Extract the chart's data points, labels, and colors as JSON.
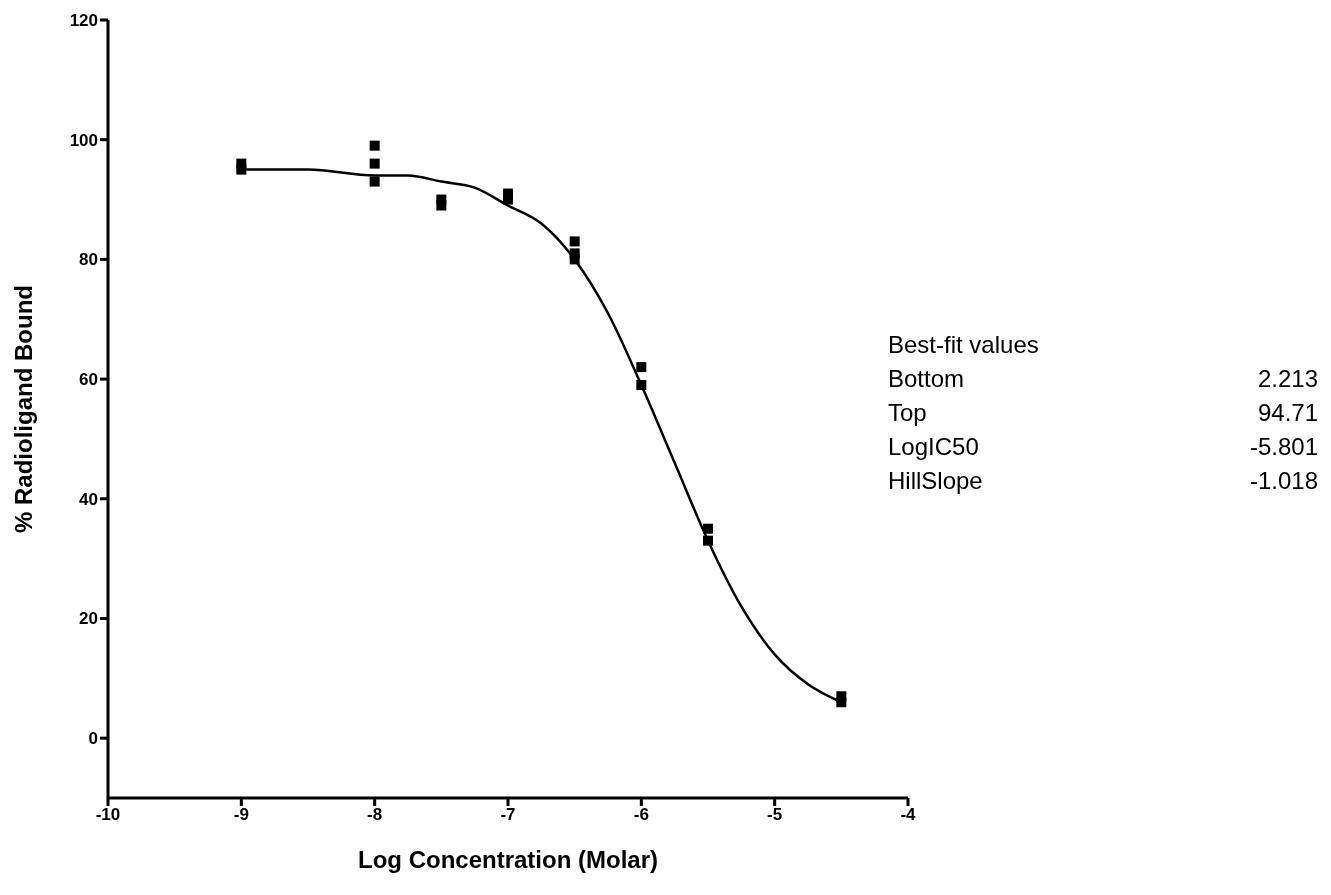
{
  "chart_data": {
    "type": "scatter",
    "xlabel": "Log Concentration (Molar)",
    "ylabel": "% Radioligand Bound",
    "xlim": [
      -10,
      -4
    ],
    "xticks": [
      -10,
      -9,
      -8,
      -7,
      -6,
      -5,
      -4
    ],
    "ylim": [
      -10,
      120
    ],
    "yticks": [
      0,
      20,
      40,
      60,
      80,
      100,
      120
    ],
    "grid": false,
    "marker": "square",
    "series": [
      {
        "color": "#000000",
        "x": [
          -9,
          -9,
          -8,
          -8,
          -8,
          -7.5,
          -7.5,
          -7,
          -7,
          -6.5,
          -6.5,
          -6.5,
          -6,
          -6,
          -5.5,
          -5.5,
          -4.5,
          -4.5
        ],
        "values": [
          95,
          96,
          99,
          96,
          93,
          90,
          89,
          91,
          90,
          83,
          81,
          80,
          62,
          59,
          35,
          33,
          7,
          6
        ]
      },
      {
        "type": "line",
        "marker": "none",
        "color": "#000000",
        "x": [
          -9,
          -8.5,
          -8,
          -7.75,
          -7.5,
          -7.25,
          -7,
          -6.75,
          -6.5,
          -6.25,
          -6,
          -5.75,
          -5.5,
          -5.25,
          -5,
          -4.75,
          -4.5
        ],
        "values": [
          95,
          95,
          94,
          94,
          93,
          92,
          89,
          86,
          80,
          71,
          59,
          46,
          33,
          22,
          14,
          9,
          6
        ]
      }
    ],
    "annotations": [
      "Best-fit values",
      "Bottom",
      "2.213",
      "Top",
      "94.71",
      "LogIC50",
      "-5.801",
      "HillSlope",
      "-1.018"
    ]
  }
}
